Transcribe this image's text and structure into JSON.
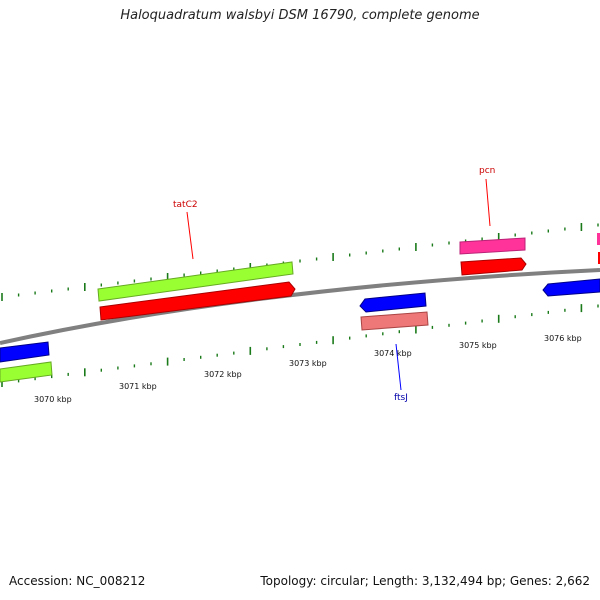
{
  "title": "Haloquadratum walsbyi DSM 16790, complete genome",
  "footer": {
    "accession": "Accession: NC_008212",
    "stats": "Topology: circular; Length: 3,132,494 bp; Genes: 2,662"
  },
  "axis": {
    "tick_labels": [
      "3070 kbp",
      "3071 kbp",
      "3072 kbp",
      "3073 kbp",
      "3074 kbp",
      "3075 kbp",
      "3076 kbp"
    ]
  },
  "genes": [
    {
      "name": "tatC2",
      "color": "#ff0000"
    },
    {
      "name": "pcn",
      "color": "#ff0000"
    },
    {
      "name": "ftsJ",
      "color": "#0000ff"
    }
  ],
  "colors": {
    "backbone": "#808080",
    "tick": "#1a7a1a",
    "forward_gene": "#ff0000",
    "reverse_gene": "#0000ff",
    "forward_cds": "#99ff33",
    "forward_rna": "#ff3399",
    "reverse_cds": "#ee7777"
  }
}
